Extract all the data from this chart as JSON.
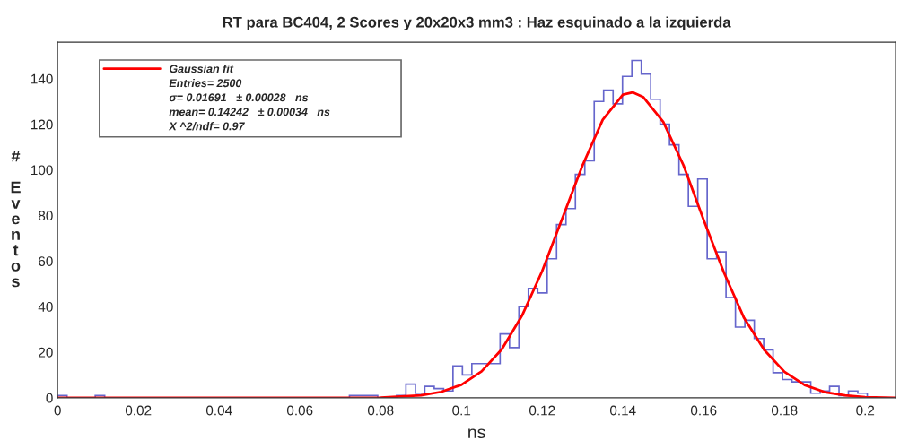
{
  "chart_data": {
    "type": "histogram",
    "title": "RT para BC404, 2 Scores y 20x20x3 mm3 : Haz esquinado a la izquierda",
    "xlabel": "ns",
    "ylabel": "# Eventos",
    "bins": [
      0,
      0.00233,
      0.00466,
      0.00699,
      0.00933,
      0.01166,
      0.01399,
      0.01632,
      0.01865,
      0.02098,
      0.02331,
      0.02565,
      0.02798,
      0.03031,
      0.03264,
      0.03497,
      0.0373,
      0.03963,
      0.04197,
      0.0443,
      0.04663,
      0.04896,
      0.05129,
      0.05362,
      0.05596,
      0.05829,
      0.06062,
      0.06295,
      0.06528,
      0.06761,
      0.06994,
      0.07228,
      0.07461,
      0.07694,
      0.07927,
      0.0816,
      0.08393,
      0.08626,
      0.0886,
      0.09093,
      0.09326,
      0.09559,
      0.09792,
      0.10025,
      0.10258,
      0.10492,
      0.10725,
      0.10958,
      0.11191,
      0.11424,
      0.11657,
      0.1189,
      0.12124,
      0.12357,
      0.1259,
      0.12823,
      0.13056,
      0.13289,
      0.13522,
      0.13756,
      0.13989,
      0.14222,
      0.14455,
      0.14688,
      0.14921,
      0.15154,
      0.15388,
      0.15621,
      0.15854,
      0.16087,
      0.1632,
      0.16553,
      0.16786,
      0.1702,
      0.17253,
      0.17486,
      0.17719,
      0.17952,
      0.18185,
      0.18419,
      0.18652,
      0.18885,
      0.19118,
      0.19351,
      0.19584,
      0.19817,
      0.20051,
      0.20284,
      0.20517,
      0.2075
    ],
    "values": [
      1,
      0,
      0,
      0,
      1,
      0,
      0,
      0,
      0,
      0,
      0,
      0,
      0,
      0,
      0,
      0,
      0,
      0,
      0,
      0,
      0,
      0,
      0,
      0,
      0,
      0,
      0,
      0,
      0,
      0,
      0,
      1,
      1,
      1,
      0,
      0,
      1,
      6,
      2,
      5,
      4,
      3,
      14,
      10,
      15,
      15,
      15,
      28,
      22,
      40,
      48,
      46,
      61,
      76,
      83,
      98,
      104,
      130,
      135,
      129,
      141,
      148,
      142,
      131,
      120,
      111,
      98,
      84,
      96,
      61,
      64,
      44,
      31,
      34,
      26,
      21,
      11,
      8,
      7,
      7,
      2,
      3,
      5,
      1,
      3,
      2,
      0,
      0,
      0
    ],
    "color": "#6666cc",
    "series": [
      {
        "type": "line",
        "name": "Gaussian fit",
        "color": "#ff0000",
        "x": [
          0,
          0.06,
          0.08,
          0.09,
          0.095,
          0.1,
          0.105,
          0.11,
          0.115,
          0.12,
          0.125,
          0.13,
          0.135,
          0.14,
          0.1424,
          0.145,
          0.15,
          0.155,
          0.16,
          0.165,
          0.17,
          0.175,
          0.18,
          0.185,
          0.19,
          0.195,
          0.2,
          0.2075
        ],
        "values": [
          0,
          0,
          0.1,
          1.1,
          2.6,
          5.7,
          11.6,
          21.3,
          36,
          55.6,
          78.8,
          102,
          122,
          133,
          134,
          132,
          121,
          102,
          78,
          55,
          35,
          21,
          11.4,
          5.6,
          2.5,
          1.1,
          0.3,
          0
        ]
      }
    ],
    "annotations": [
      "Entries= 2500",
      "σ= 0.01691   ± 0.00028   ns",
      "mean= 0.14242   ± 0.00034   ns",
      "X ^2/ndf= 0.97"
    ],
    "xlim": [
      0,
      0.2075
    ],
    "ylim": [
      0,
      156
    ],
    "xticks": [
      0,
      0.02,
      0.04,
      0.06,
      0.08,
      0.1,
      0.12,
      0.14,
      0.16,
      0.18,
      0.2
    ],
    "yticks": [
      0,
      20,
      40,
      60,
      80,
      100,
      120,
      140
    ],
    "legend": "top left",
    "grid": false
  }
}
